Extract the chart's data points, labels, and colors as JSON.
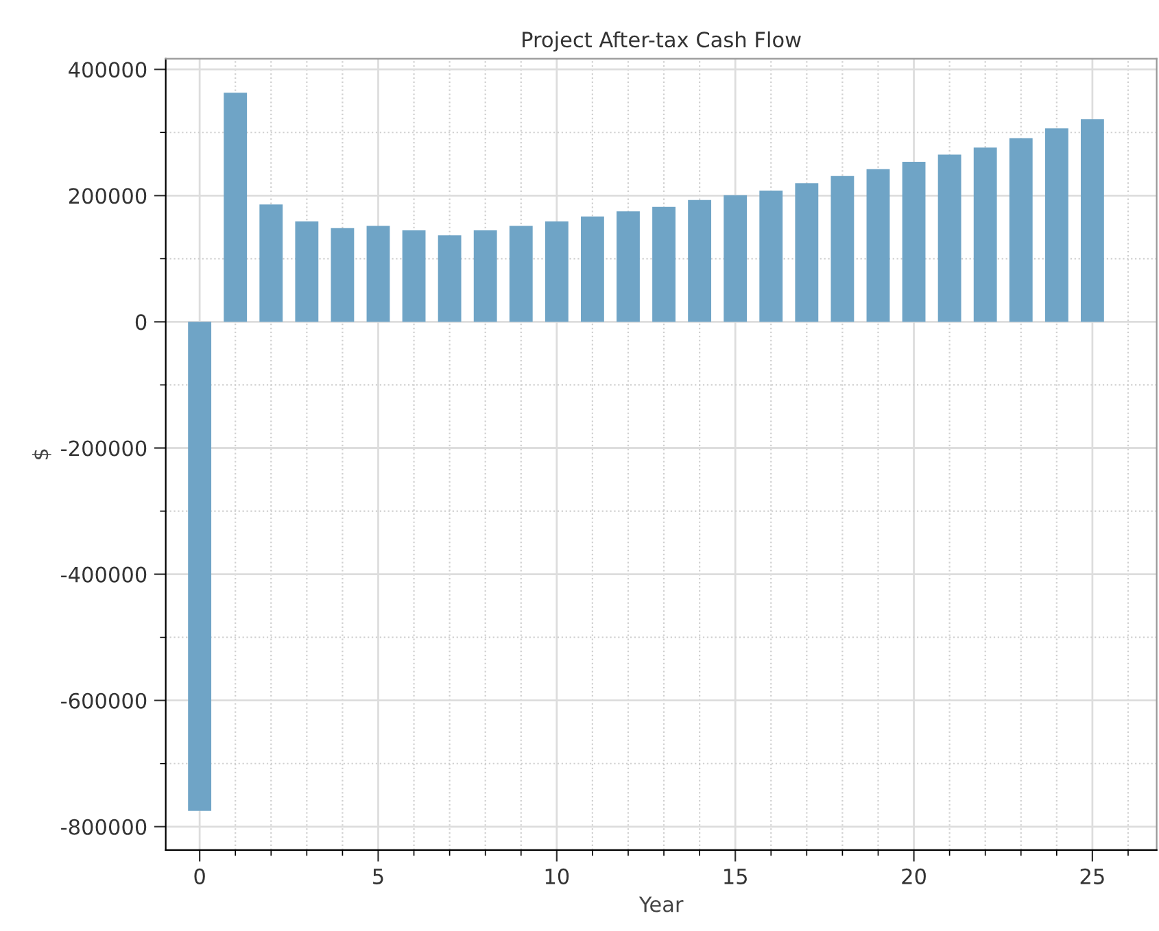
{
  "chart_data": {
    "type": "bar",
    "title": "Project After-tax Cash Flow",
    "xlabel": "Year",
    "ylabel": "$",
    "x": [
      0,
      1,
      2,
      3,
      4,
      5,
      6,
      7,
      8,
      9,
      10,
      11,
      12,
      13,
      14,
      15,
      16,
      17,
      18,
      19,
      20,
      21,
      22,
      23,
      24,
      25
    ],
    "values": [
      -775000,
      363000,
      186000,
      159000,
      148500,
      152000,
      145000,
      137000,
      145000,
      152000,
      159000,
      167000,
      175000,
      182000,
      193000,
      200700,
      208000,
      219500,
      231000,
      242000,
      253600,
      265000,
      276000,
      291000,
      306500,
      321000
    ],
    "color": "#6fa4c6",
    "xlim": [
      -0.95,
      26.8
    ],
    "xticks": [
      0,
      5,
      10,
      15,
      20,
      25
    ],
    "ylim": [
      -837000,
      417000
    ],
    "yticks": [
      -800000,
      -600000,
      -400000,
      -200000,
      0,
      200000,
      400000
    ],
    "grid": true
  }
}
